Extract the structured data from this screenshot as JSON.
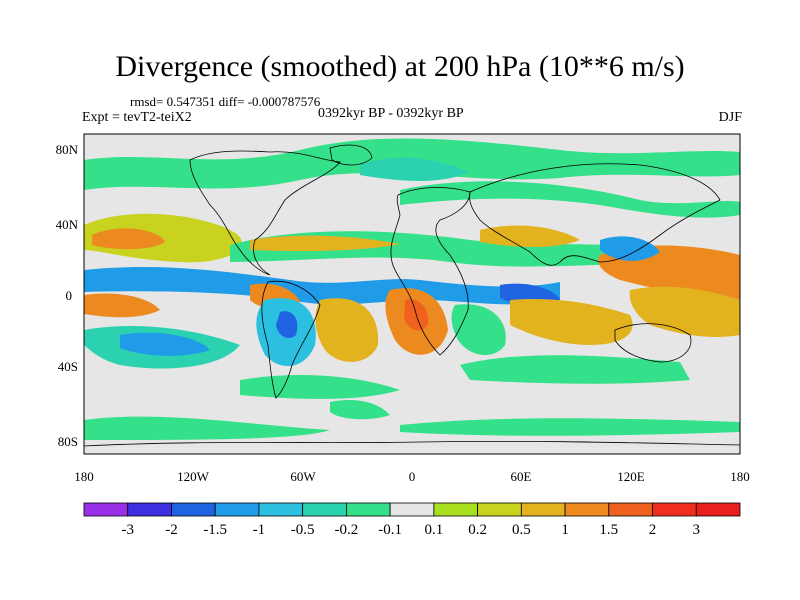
{
  "header": {
    "title": "Divergence (smoothed) at 200 hPa (10**6 m/s)",
    "stats": "rmsd= 0.547351 diff= -0.000787576",
    "expt": "Expt = tevT2-teiX2",
    "period": "0392kyr BP - 0392kyr BP",
    "season": "DJF"
  },
  "axes": {
    "lat_labels": [
      "80N",
      "40N",
      "0",
      "40S",
      "80S"
    ],
    "lon_labels": [
      "180",
      "120W",
      "60W",
      "0",
      "60E",
      "120E",
      "180"
    ]
  },
  "colorbar": {
    "labels": [
      "-3",
      "-2",
      "-1.5",
      "-1",
      "-0.5",
      "-0.2",
      "-0.1",
      "0.1",
      "0.2",
      "0.5",
      "1",
      "1.5",
      "2",
      "3"
    ],
    "colors": [
      "#9a2fe8",
      "#3f2fe0",
      "#1f63e0",
      "#1f9be8",
      "#2cc0e0",
      "#2cd2b0",
      "#35e08a",
      "#e6e6e6",
      "#a8e01f",
      "#c8d21f",
      "#e2b21f",
      "#ec8a1f",
      "#f0601f",
      "#f02e1f",
      "#e81f1f"
    ]
  }
}
